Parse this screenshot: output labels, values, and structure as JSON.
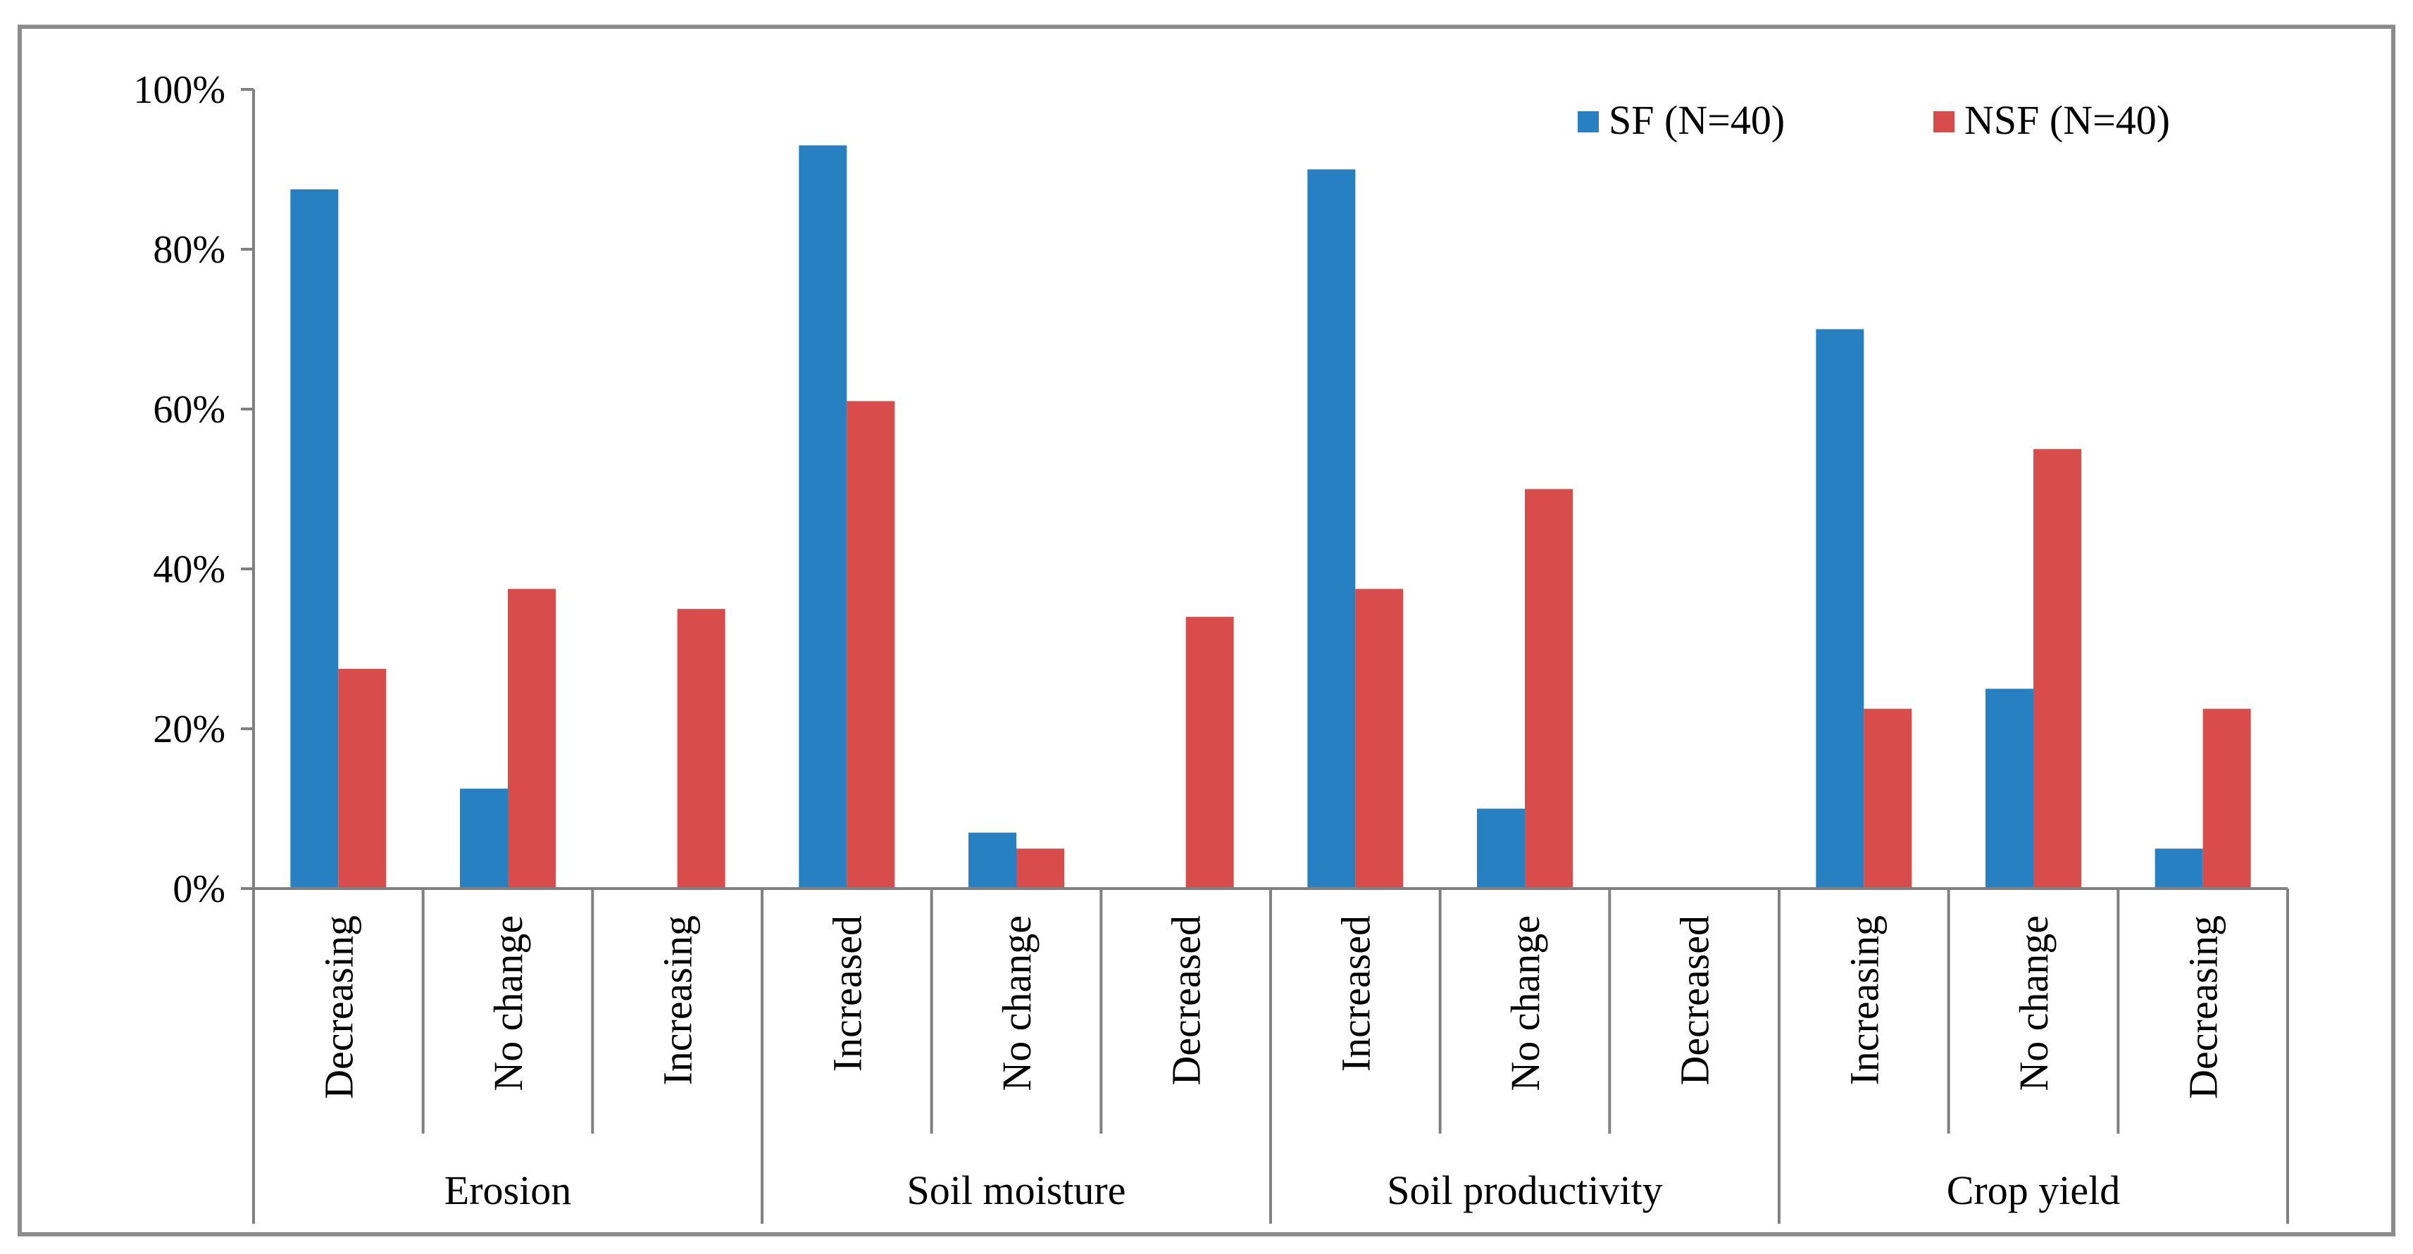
{
  "chart_data": {
    "type": "bar",
    "title": "",
    "xlabel": "",
    "ylabel": "",
    "ylim": [
      0,
      100
    ],
    "y_ticks": [
      0,
      20,
      40,
      60,
      80,
      100
    ],
    "y_tick_labels": [
      "0%",
      "20%",
      "40%",
      "60%",
      "80%",
      "100%"
    ],
    "grid": false,
    "legend_position": "top-right",
    "groups": [
      {
        "label": "Erosion",
        "categories": [
          "Decreasing",
          "No change",
          "Increasing"
        ]
      },
      {
        "label": "Soil moisture",
        "categories": [
          "Increased",
          "No change",
          "Decreased"
        ]
      },
      {
        "label": "Soil productivity",
        "categories": [
          "Increased",
          "No change",
          "Decreased"
        ]
      },
      {
        "label": "Crop yield",
        "categories": [
          "Increasing",
          "No change",
          "Decreasing"
        ]
      }
    ],
    "categories": [
      "Decreasing",
      "No change",
      "Increasing",
      "Increased",
      "No change",
      "Decreased",
      "Increased",
      "No change",
      "Decreased",
      "Increasing",
      "No change",
      "Decreasing"
    ],
    "series": [
      {
        "name": "SF (N=40)",
        "color": "#2680C2",
        "values": [
          87.5,
          12.5,
          0,
          93,
          7,
          0,
          90,
          10,
          0,
          70,
          25,
          5
        ]
      },
      {
        "name": "NSF (N=40)",
        "color": "#D94C4C",
        "values": [
          27.5,
          37.5,
          35,
          61,
          5,
          34,
          37.5,
          50,
          0,
          22.5,
          55,
          22.5
        ]
      }
    ]
  }
}
